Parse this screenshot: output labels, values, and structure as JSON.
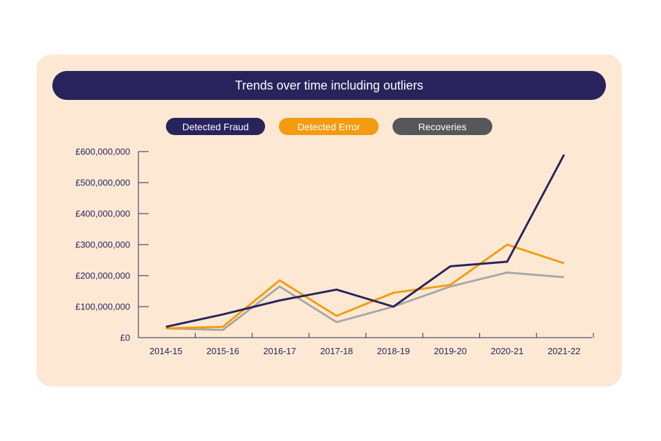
{
  "chart_data": {
    "type": "line",
    "title": "Trends over time including outliers",
    "categories": [
      "2014-15",
      "2015-16",
      "2016-17",
      "2017-18",
      "2018-19",
      "2019-20",
      "2020-21",
      "2021-22"
    ],
    "ylim": [
      0,
      600000000
    ],
    "yticks": [
      0,
      100000000,
      200000000,
      300000000,
      400000000,
      500000000,
      600000000
    ],
    "ytick_labels": [
      "£0",
      "£100,000,000",
      "£200,000,000",
      "£300,000,000",
      "£400,000,000",
      "£500,000,000",
      "£600,000,000"
    ],
    "xlabel": "",
    "ylabel": "",
    "legend_position": "top",
    "series": [
      {
        "name": "Detected Fraud",
        "color": "#29235c",
        "values": [
          35000000,
          75000000,
          120000000,
          155000000,
          100000000,
          230000000,
          245000000,
          590000000
        ]
      },
      {
        "name": "Detected Error",
        "color": "#f39c12",
        "values": [
          30000000,
          35000000,
          185000000,
          70000000,
          145000000,
          170000000,
          300000000,
          240000000
        ]
      },
      {
        "name": "Recoveries",
        "color": "#a9a7a8",
        "legend_color": "#56575a",
        "values": [
          30000000,
          25000000,
          165000000,
          50000000,
          100000000,
          165000000,
          210000000,
          195000000
        ]
      }
    ]
  }
}
